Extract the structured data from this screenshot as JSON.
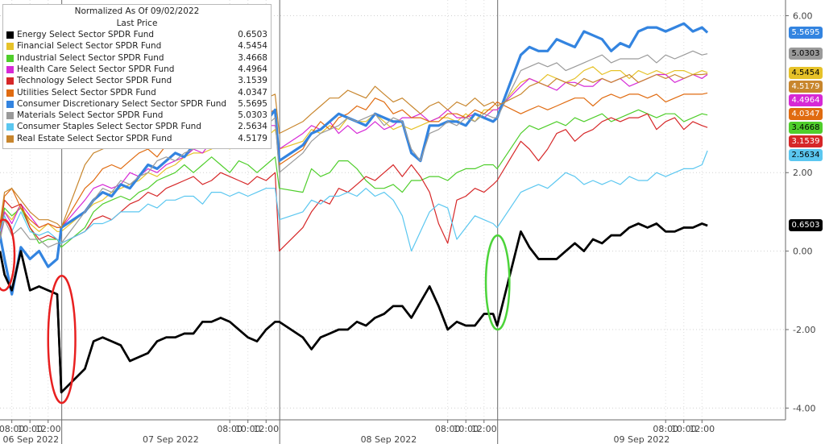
{
  "chart_data": {
    "type": "line",
    "title": "Normalized As Of 09/02/2022",
    "legend_header": "Last Price",
    "legend_position": "top-left",
    "y_axis_position": "right",
    "ylim": [
      -4.3,
      6.4
    ],
    "yticks": [
      "6.00",
      "2.00",
      "0.00",
      "-2.00",
      "-4.00"
    ],
    "xlim": [
      6.7,
      93.2
    ],
    "xticks": [
      {
        "x": 8,
        "label": "08:00"
      },
      {
        "x": 10,
        "label": "10:00"
      },
      {
        "x": 12,
        "label": "12:00"
      },
      {
        "x": 32,
        "label": "08:00"
      },
      {
        "x": 34,
        "label": "10:00"
      },
      {
        "x": 36,
        "label": "12:00"
      },
      {
        "x": 56,
        "label": "08:00"
      },
      {
        "x": 58,
        "label": "10:00"
      },
      {
        "x": 60,
        "label": "12:00"
      },
      {
        "x": 80,
        "label": "08:00"
      },
      {
        "x": 82,
        "label": "10:00"
      },
      {
        "x": 84,
        "label": "12:00"
      }
    ],
    "days": [
      {
        "label": "06 Sep 2022",
        "start": 6.7,
        "end": 13.5
      },
      {
        "label": "07 Sep 2022",
        "start": 13.5,
        "end": 37.5
      },
      {
        "label": "08 Sep 2022",
        "start": 37.5,
        "end": 61.5
      },
      {
        "label": "09 Sep 2022",
        "start": 61.5,
        "end": 93.2
      }
    ],
    "day_breaks": [
      13.5,
      37.5,
      61.5
    ],
    "session_breaks": [
      13.5,
      16,
      37.5,
      40,
      61.5,
      64
    ],
    "x_hours": [
      6.7,
      7.2,
      8,
      9,
      10,
      11,
      12,
      13,
      13.45,
      16.05,
      17,
      18,
      19,
      20,
      21,
      22,
      23,
      24,
      25,
      26,
      27,
      28,
      29,
      30,
      31,
      32,
      33,
      34,
      35,
      36,
      37,
      37.45,
      40.05,
      41,
      42,
      43,
      44,
      45,
      46,
      47,
      48,
      49,
      50,
      51,
      52,
      53,
      54,
      55,
      56,
      57,
      58,
      59,
      60,
      61,
      61.45,
      64.05,
      65,
      66,
      67,
      68,
      69,
      70,
      71,
      72,
      73,
      74,
      75,
      76,
      77,
      78,
      79,
      80,
      81,
      82,
      83,
      84,
      84.6
    ],
    "series": [
      {
        "name": "Energy Select Sector SPDR Fund",
        "last": "0.6503",
        "color": "#000000",
        "width": 2.6,
        "values": [
          0.0,
          -0.6,
          -1.0,
          0.0,
          -1.0,
          -0.9,
          -1.0,
          -1.1,
          -3.6,
          -3.0,
          -2.3,
          -2.2,
          -2.3,
          -2.4,
          -2.8,
          -2.7,
          -2.6,
          -2.3,
          -2.2,
          -2.2,
          -2.1,
          -2.1,
          -1.8,
          -1.8,
          -1.7,
          -1.8,
          -2.0,
          -2.2,
          -2.3,
          -2.0,
          -1.8,
          -1.8,
          -2.2,
          -2.5,
          -2.2,
          -2.1,
          -2.0,
          -2.0,
          -1.8,
          -1.9,
          -1.7,
          -1.6,
          -1.4,
          -1.4,
          -1.7,
          -1.3,
          -0.9,
          -1.4,
          -2.0,
          -1.8,
          -1.9,
          -1.9,
          -1.6,
          -1.6,
          -1.9,
          0.5,
          0.1,
          -0.2,
          -0.2,
          -0.2,
          0.0,
          0.2,
          0.0,
          0.3,
          0.2,
          0.4,
          0.4,
          0.6,
          0.7,
          0.6,
          0.7,
          0.5,
          0.5,
          0.6,
          0.6,
          0.7,
          0.65
        ]
      },
      {
        "name": "Financial Select Sector SPDR Fund",
        "last": "4.5454",
        "color": "#e6c229",
        "width": 1.2,
        "values": [
          0.2,
          1.0,
          0.8,
          1.2,
          0.7,
          0.5,
          0.7,
          0.5,
          0.5,
          1.0,
          1.2,
          1.3,
          1.5,
          1.6,
          1.7,
          1.8,
          2.0,
          1.9,
          2.1,
          2.2,
          2.4,
          2.5,
          2.5,
          2.6,
          2.8,
          2.6,
          3.0,
          2.9,
          3.0,
          2.9,
          3.1,
          2.6,
          2.8,
          3.1,
          3.0,
          3.2,
          3.1,
          3.4,
          3.3,
          3.3,
          3.5,
          3.3,
          3.1,
          3.2,
          3.1,
          3.2,
          3.3,
          3.4,
          3.4,
          3.3,
          3.5,
          3.3,
          3.6,
          3.6,
          3.6,
          4.3,
          4.4,
          4.3,
          4.5,
          4.4,
          4.3,
          4.4,
          4.6,
          4.7,
          4.5,
          4.6,
          4.6,
          4.4,
          4.6,
          4.5,
          4.6,
          4.5,
          4.6,
          4.6,
          4.5,
          4.6,
          4.55
        ]
      },
      {
        "name": "Industrial Select Sector SPDR Fund",
        "last": "3.4668",
        "color": "#4fce2b",
        "width": 1.2,
        "values": [
          0.4,
          1.1,
          0.9,
          1.1,
          0.6,
          0.2,
          0.3,
          0.3,
          0.1,
          0.6,
          1.0,
          1.2,
          1.3,
          1.4,
          1.3,
          1.5,
          1.6,
          1.8,
          1.9,
          2.0,
          2.2,
          2.0,
          2.2,
          2.4,
          2.2,
          2.0,
          2.3,
          2.2,
          2.0,
          2.2,
          2.4,
          1.6,
          1.5,
          2.1,
          1.9,
          2.0,
          2.3,
          2.3,
          2.1,
          1.8,
          1.6,
          1.6,
          1.7,
          1.5,
          1.8,
          1.8,
          1.9,
          1.9,
          1.8,
          2.0,
          2.1,
          2.1,
          2.2,
          2.2,
          2.1,
          3.0,
          3.2,
          3.1,
          3.2,
          3.3,
          3.2,
          3.4,
          3.3,
          3.4,
          3.5,
          3.3,
          3.4,
          3.5,
          3.6,
          3.5,
          3.4,
          3.5,
          3.5,
          3.3,
          3.4,
          3.5,
          3.47
        ]
      },
      {
        "name": "Health Care Select Sector SPDR Fund",
        "last": "4.4964",
        "color": "#d629d6",
        "width": 1.2,
        "values": [
          0.3,
          1.0,
          0.7,
          1.2,
          0.9,
          0.6,
          0.7,
          0.6,
          0.6,
          1.3,
          1.6,
          1.7,
          1.6,
          1.7,
          2.0,
          1.9,
          2.1,
          2.0,
          2.2,
          2.3,
          2.4,
          2.6,
          2.5,
          2.8,
          2.7,
          3.0,
          2.9,
          3.0,
          3.1,
          3.2,
          3.2,
          2.6,
          3.0,
          3.2,
          3.1,
          3.3,
          3.0,
          3.2,
          3.0,
          3.1,
          3.3,
          3.1,
          3.2,
          3.4,
          3.4,
          3.5,
          3.3,
          3.4,
          3.6,
          3.4,
          3.4,
          3.5,
          3.4,
          3.6,
          3.6,
          4.2,
          4.4,
          4.3,
          4.2,
          4.1,
          4.3,
          4.3,
          4.2,
          4.2,
          4.4,
          4.3,
          4.4,
          4.2,
          4.3,
          4.4,
          4.5,
          4.5,
          4.3,
          4.4,
          4.5,
          4.4,
          4.5
        ]
      },
      {
        "name": "Technology Select Sector SPDR Fund",
        "last": "3.1539",
        "color": "#d62728",
        "width": 1.2,
        "values": [
          0.5,
          1.3,
          1.1,
          1.2,
          0.6,
          0.3,
          0.4,
          0.3,
          0.2,
          0.5,
          0.8,
          0.9,
          0.8,
          1.0,
          1.2,
          1.3,
          1.5,
          1.4,
          1.6,
          1.7,
          1.8,
          1.9,
          1.7,
          1.8,
          2.0,
          1.9,
          1.8,
          1.7,
          1.9,
          1.8,
          2.0,
          0.0,
          0.6,
          1.0,
          1.3,
          1.2,
          1.6,
          1.5,
          1.7,
          1.9,
          1.8,
          2.0,
          2.2,
          1.9,
          2.2,
          1.9,
          1.5,
          0.7,
          0.2,
          1.3,
          1.4,
          1.6,
          1.5,
          1.7,
          1.8,
          2.8,
          2.6,
          2.3,
          2.6,
          3.0,
          3.1,
          2.8,
          3.0,
          3.1,
          3.3,
          3.4,
          3.3,
          3.4,
          3.4,
          3.5,
          3.1,
          3.3,
          3.4,
          3.1,
          3.3,
          3.2,
          3.15
        ]
      },
      {
        "name": "Utilities Select Sector SPDR Fund",
        "last": "4.0347",
        "color": "#e06b10",
        "width": 1.2,
        "values": [
          0.6,
          1.4,
          1.6,
          1.1,
          0.8,
          0.6,
          0.7,
          0.6,
          0.6,
          1.6,
          1.8,
          2.1,
          2.2,
          2.1,
          2.3,
          2.5,
          2.6,
          2.4,
          2.7,
          2.8,
          2.7,
          2.9,
          3.0,
          3.1,
          3.2,
          3.1,
          3.3,
          3.2,
          3.4,
          3.5,
          3.6,
          2.2,
          2.6,
          3.0,
          3.3,
          3.1,
          3.4,
          3.5,
          3.7,
          3.6,
          3.9,
          3.8,
          3.5,
          3.6,
          3.4,
          3.4,
          3.3,
          3.3,
          3.5,
          3.5,
          3.4,
          3.6,
          3.5,
          3.7,
          3.8,
          3.5,
          3.6,
          3.7,
          3.6,
          3.7,
          3.8,
          3.9,
          3.9,
          3.7,
          3.9,
          4.0,
          3.9,
          4.0,
          4.0,
          3.9,
          4.0,
          3.8,
          3.9,
          4.0,
          4.0,
          4.0,
          4.03
        ]
      },
      {
        "name": "Consumer Discretionary Select Sector SPDR Fund",
        "last": "5.5695",
        "color": "#3384e0",
        "width": 3.2,
        "values": [
          0.4,
          -0.2,
          -1.1,
          0.1,
          -0.2,
          0.0,
          -0.4,
          -0.2,
          0.6,
          1.0,
          1.3,
          1.5,
          1.4,
          1.7,
          1.6,
          1.9,
          2.2,
          2.1,
          2.3,
          2.5,
          2.4,
          2.7,
          3.0,
          2.8,
          3.2,
          3.1,
          3.3,
          3.6,
          3.4,
          3.3,
          3.6,
          2.3,
          2.7,
          3.0,
          3.1,
          3.3,
          3.5,
          3.4,
          3.3,
          3.2,
          3.5,
          3.4,
          3.3,
          3.3,
          2.5,
          2.3,
          3.2,
          3.2,
          3.3,
          3.3,
          3.2,
          3.5,
          3.4,
          3.3,
          3.4,
          5.0,
          5.2,
          5.1,
          5.1,
          5.4,
          5.3,
          5.2,
          5.6,
          5.5,
          5.4,
          5.1,
          5.3,
          5.2,
          5.6,
          5.7,
          5.7,
          5.6,
          5.7,
          5.8,
          5.6,
          5.7,
          5.57
        ]
      },
      {
        "name": "Materials Select Sector SPDR Fund",
        "last": "5.0303",
        "color": "#9a9a9a",
        "width": 1.2,
        "values": [
          0.3,
          0.8,
          0.4,
          0.6,
          0.3,
          0.3,
          0.1,
          0.2,
          0.2,
          1.0,
          1.3,
          1.6,
          1.5,
          1.8,
          1.7,
          1.9,
          2.0,
          2.3,
          2.4,
          2.3,
          2.5,
          2.6,
          2.8,
          2.7,
          3.0,
          2.9,
          3.2,
          3.1,
          3.3,
          3.2,
          3.4,
          2.0,
          2.5,
          2.8,
          3.0,
          3.1,
          3.2,
          3.4,
          3.3,
          3.4,
          3.5,
          3.2,
          3.4,
          3.3,
          2.6,
          2.3,
          3.0,
          3.1,
          3.3,
          3.2,
          3.4,
          3.3,
          3.5,
          3.4,
          3.4,
          4.6,
          4.7,
          4.8,
          4.7,
          4.8,
          4.6,
          4.7,
          4.8,
          4.9,
          5.0,
          4.8,
          4.9,
          4.9,
          4.9,
          5.0,
          4.8,
          5.0,
          4.9,
          5.0,
          5.1,
          5.0,
          5.03
        ]
      },
      {
        "name": "Consumer Staples Select Sector SPDR Fund",
        "last": "2.5634",
        "color": "#5bc7f0",
        "width": 1.2,
        "values": [
          0.5,
          0.9,
          0.5,
          1.0,
          0.5,
          0.4,
          0.5,
          0.3,
          0.2,
          0.5,
          0.7,
          0.7,
          0.8,
          1.0,
          1.0,
          1.0,
          1.2,
          1.1,
          1.3,
          1.3,
          1.4,
          1.4,
          1.2,
          1.5,
          1.5,
          1.4,
          1.5,
          1.4,
          1.5,
          1.6,
          1.6,
          0.8,
          1.0,
          1.3,
          1.2,
          1.4,
          1.4,
          1.5,
          1.4,
          1.6,
          1.4,
          1.5,
          1.3,
          0.9,
          0.0,
          0.5,
          1.0,
          1.2,
          1.1,
          0.3,
          0.6,
          0.9,
          0.8,
          0.7,
          0.6,
          1.5,
          1.6,
          1.7,
          1.6,
          1.8,
          2.0,
          1.9,
          1.7,
          1.8,
          1.7,
          1.8,
          1.7,
          1.9,
          1.8,
          1.8,
          2.0,
          1.9,
          2.0,
          2.1,
          2.1,
          2.2,
          2.56
        ]
      },
      {
        "name": "Real Estate Select Sector SPDR Fund",
        "last": "4.5179",
        "color": "#c8862d",
        "width": 1.2,
        "values": [
          0.7,
          1.5,
          1.6,
          1.3,
          1.0,
          0.8,
          0.8,
          0.7,
          0.6,
          2.2,
          2.5,
          2.6,
          2.7,
          2.8,
          2.7,
          3.0,
          2.9,
          3.1,
          3.2,
          3.4,
          3.3,
          3.6,
          3.4,
          3.7,
          3.6,
          3.8,
          3.7,
          3.9,
          3.8,
          3.9,
          4.0,
          3.0,
          3.3,
          3.5,
          3.7,
          3.9,
          3.9,
          4.1,
          4.0,
          3.9,
          4.2,
          4.0,
          3.8,
          3.9,
          3.7,
          3.5,
          3.7,
          3.8,
          3.6,
          3.8,
          3.7,
          3.9,
          3.7,
          3.8,
          3.7,
          4.0,
          4.2,
          4.3,
          4.2,
          4.4,
          4.3,
          4.2,
          4.4,
          4.3,
          4.4,
          4.3,
          4.4,
          4.5,
          4.3,
          4.4,
          4.5,
          4.4,
          4.5,
          4.4,
          4.5,
          4.5,
          4.52
        ]
      }
    ],
    "annotations": [
      {
        "type": "ellipse",
        "color": "#e82020",
        "x": 7.1,
        "y": -0.1,
        "rx_hours": 1.2,
        "ry_value": 0.9
      },
      {
        "type": "ellipse",
        "color": "#e82020",
        "x": 13.5,
        "y": -2.25,
        "rx_hours": 1.5,
        "ry_value": 1.62
      },
      {
        "type": "ellipse",
        "color": "#4cd43a",
        "x": 61.5,
        "y": -0.8,
        "rx_hours": 1.3,
        "ry_value": 1.2
      }
    ]
  }
}
